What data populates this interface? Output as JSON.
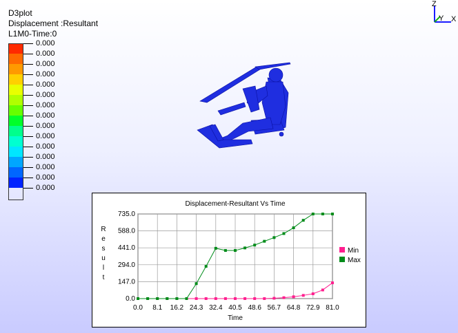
{
  "header": {
    "app_name": "D3plot",
    "result_label": "Displacement :Resultant",
    "state_label": "L1M0-Time:0"
  },
  "legend": {
    "colors": [
      "#ff2a00",
      "#ff6a00",
      "#ff9a00",
      "#ffd000",
      "#e8ff00",
      "#b0ff00",
      "#66ff00",
      "#00ff2a",
      "#00ff8c",
      "#00ffd0",
      "#00e6ff",
      "#00a6ff",
      "#0066ff",
      "#0022ff"
    ],
    "values": [
      "0.000",
      "0.000",
      "0.000",
      "0.000",
      "0.000",
      "0.000",
      "0.000",
      "0.000",
      "0.000",
      "0.000",
      "0.000",
      "0.000",
      "0.000",
      "0.000",
      "0.000"
    ]
  },
  "triad": {
    "z": "Z",
    "y": "Y",
    "x": "X"
  },
  "chart_data": {
    "type": "line",
    "title": "Displacement-Resultant Vs Time",
    "xlabel": "Time",
    "ylabel": "Result",
    "xticks": [
      "0.0",
      "8.1",
      "16.2",
      "24.3",
      "32.4",
      "40.5",
      "48.6",
      "56.7",
      "64.8",
      "72.9",
      "81.0"
    ],
    "yticks": [
      "0.0",
      "147.0",
      "294.0",
      "441.0",
      "588.0",
      "735.0"
    ],
    "xlim": [
      0,
      81
    ],
    "ylim": [
      0,
      735
    ],
    "legend_position": "right",
    "series": [
      {
        "name": "Min",
        "color": "#ff1f8f",
        "x": [
          0,
          4.05,
          8.1,
          12.15,
          16.2,
          20.25,
          24.3,
          28.35,
          32.4,
          36.45,
          40.5,
          44.55,
          48.6,
          52.65,
          56.7,
          60.75,
          64.8,
          68.85,
          72.9,
          76.95,
          81.0
        ],
        "y": [
          0,
          0,
          0,
          0,
          0,
          0,
          0,
          0,
          0,
          0,
          0,
          0,
          0,
          0,
          3,
          8,
          16,
          28,
          42,
          75,
          137
        ]
      },
      {
        "name": "Max",
        "color": "#008c1a",
        "x": [
          0,
          4.05,
          8.1,
          12.15,
          16.2,
          20.25,
          24.3,
          28.35,
          32.4,
          36.45,
          40.5,
          44.55,
          48.6,
          52.65,
          56.7,
          60.75,
          64.8,
          68.85,
          72.9,
          76.95,
          81.0
        ],
        "y": [
          0,
          0,
          0,
          0,
          0,
          0,
          130,
          280,
          437,
          418,
          418,
          440,
          465,
          498,
          530,
          565,
          615,
          680,
          735,
          735,
          735
        ]
      }
    ]
  }
}
